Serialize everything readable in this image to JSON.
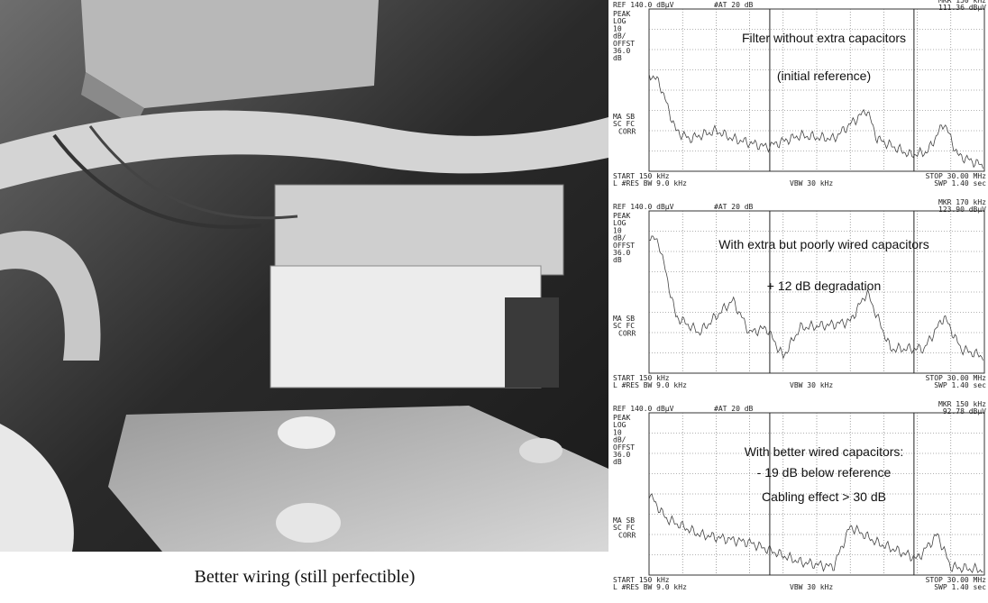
{
  "caption": "Better wiring (still perfectible)",
  "panels": [
    {
      "ref": "REF 140.0 dBµV",
      "atten": "#AT 20 dB",
      "marker_freq": "MKR 150 kHz",
      "marker_level": "111.36 dBµV",
      "side_labels": [
        "PEAK",
        "LOG",
        "10",
        "dB/",
        "OFFST",
        "36.0",
        "dB"
      ],
      "lower_labels": [
        "MA SB",
        "SC FC",
        "CORR"
      ],
      "annotations": [
        "Filter without extra capacitors",
        "(initial reference)"
      ],
      "start": "START 150 kHz",
      "stop": "STOP 30.00 MHz",
      "res_bw": "L   #RES BW 9.0 kHz",
      "vbw": "VBW 30 kHz",
      "sweep": "SWP 1.40 sec"
    },
    {
      "ref": "REF 140.0 dBµV",
      "atten": "#AT 20 dB",
      "marker_freq": "MKR 170 kHz",
      "marker_level": "123.90 dBµV",
      "side_labels": [
        "PEAK",
        "LOG",
        "10",
        "dB/",
        "OFFST",
        "36.0",
        "dB"
      ],
      "lower_labels": [
        "MA SB",
        "SC FC",
        "CORR"
      ],
      "annotations": [
        "With extra but poorly wired capacitors",
        "+ 12 dB  degradation"
      ],
      "start": "START 150 kHz",
      "stop": "STOP 30.00 MHz",
      "res_bw": "L   #RES BW 9.0 kHz",
      "vbw": "VBW 30 kHz",
      "sweep": "SWP 1.40 sec"
    },
    {
      "ref": "REF 140.0 dBµV",
      "atten": "#AT 20 dB",
      "marker_freq": "MKR 150 kHz",
      "marker_level": "92.78 dBµV",
      "side_labels": [
        "PEAK",
        "LOG",
        "10",
        "dB/",
        "OFFST",
        "36.0",
        "dB"
      ],
      "lower_labels": [
        "MA SB",
        "SC FC",
        "CORR"
      ],
      "annotations": [
        "With better wired capacitors:",
        "- 19 dB below reference",
        "Cabling effect > 30 dB"
      ],
      "start": "START 150 kHz",
      "stop": "STOP 30.00 MHz",
      "res_bw": "L   #RES BW 9.0 kHz",
      "vbw": "VBW 30 kHz",
      "sweep": "SWP 1.40 sec"
    }
  ]
}
